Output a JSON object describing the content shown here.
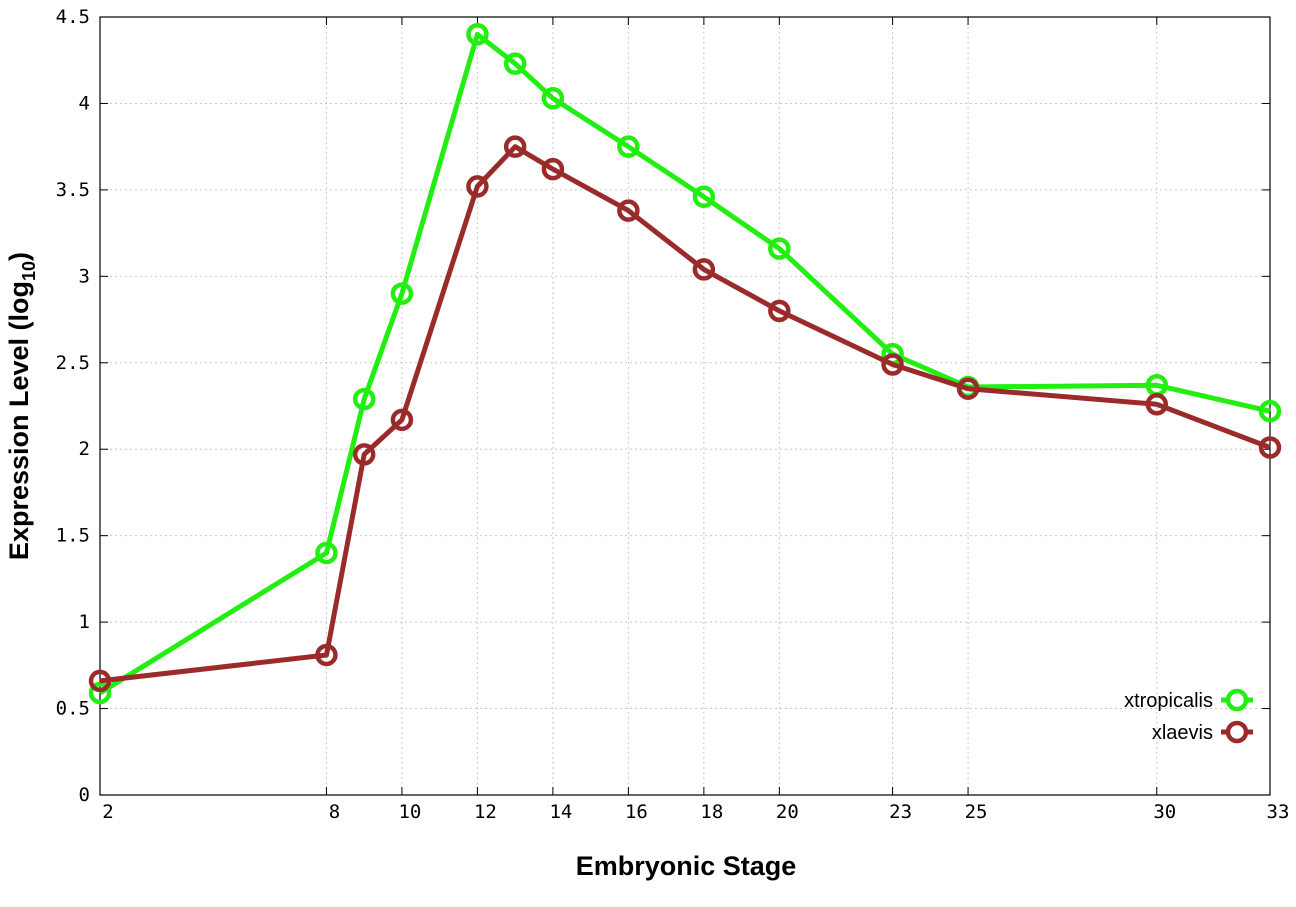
{
  "chart_data": {
    "type": "line",
    "title": "",
    "xlabel": "Embryonic Stage",
    "ylabel": "Expression Level (log",
    "ylabel_subscript": "10",
    "ylabel_close": ")",
    "xlim": [
      2,
      33
    ],
    "ylim": [
      0,
      4.5
    ],
    "x": [
      2,
      8,
      9,
      10,
      12,
      13,
      14,
      16,
      18,
      20,
      23,
      25,
      30,
      33
    ],
    "x_ticks": [
      2,
      8,
      10,
      12,
      14,
      16,
      18,
      20,
      23,
      25,
      30,
      33
    ],
    "y_ticks": [
      0,
      0.5,
      1,
      1.5,
      2,
      2.5,
      3,
      3.5,
      4,
      4.5
    ],
    "y_tick_labels": [
      "0",
      "0.5",
      "1",
      "1.5",
      "2",
      "2.5",
      "3",
      "3.5",
      "4",
      "4.5"
    ],
    "grid": true,
    "legend_position": "bottom-right",
    "series": [
      {
        "name": "xtropicalis",
        "color": "#22ee11",
        "values": [
          0.59,
          1.4,
          2.29,
          2.9,
          4.4,
          4.23,
          4.03,
          3.75,
          3.46,
          3.16,
          2.55,
          2.36,
          2.37,
          2.22
        ]
      },
      {
        "name": "xlaevis",
        "color": "#9b2b2b",
        "values": [
          0.66,
          0.81,
          1.97,
          2.17,
          3.52,
          3.75,
          3.62,
          3.38,
          3.04,
          2.8,
          2.49,
          2.35,
          2.26,
          2.01
        ]
      }
    ]
  }
}
